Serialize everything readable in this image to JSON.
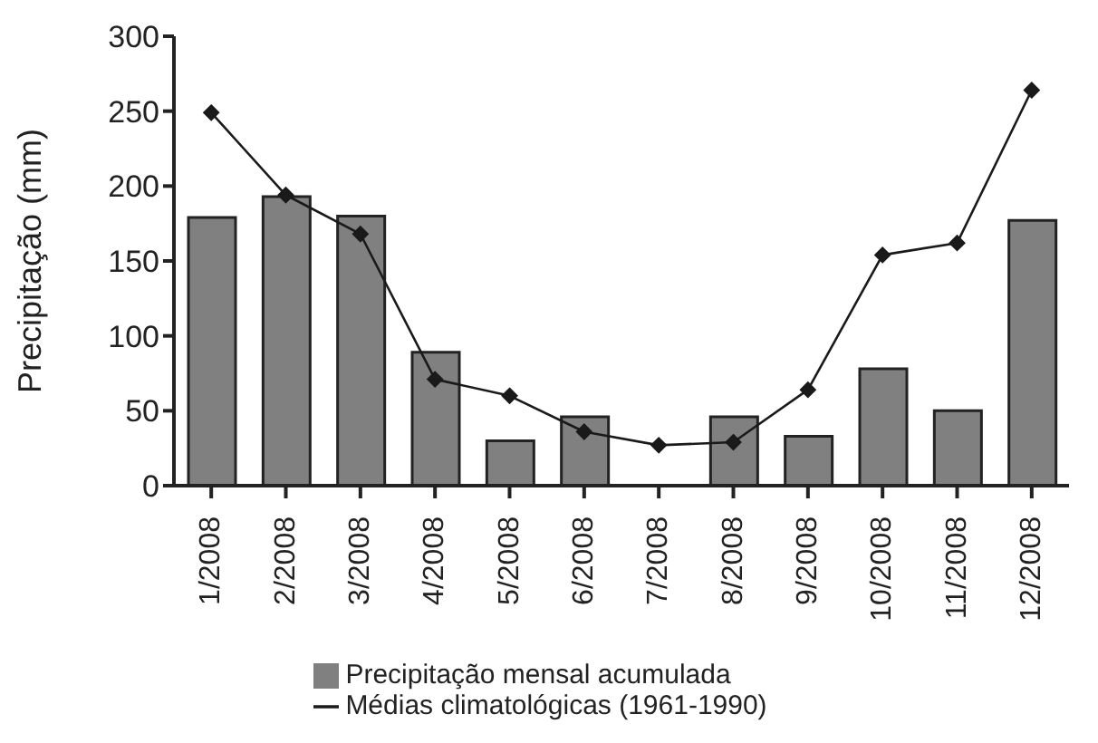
{
  "chart_data": {
    "type": "bar",
    "ylabel": "Precipitação (mm)",
    "categories": [
      "1/2008",
      "2/2008",
      "3/2008",
      "4/2008",
      "5/2008",
      "6/2008",
      "7/2008",
      "8/2008",
      "9/2008",
      "10/2008",
      "11/2008",
      "12/2008"
    ],
    "series": [
      {
        "name": "Precipitação mensal acumulada",
        "color": "#808080",
        "values": [
          179,
          193,
          180,
          89,
          30,
          46,
          0,
          46,
          33,
          78,
          50,
          177
        ]
      },
      {
        "name": "Médias climatológicas (1961-1990)",
        "type": "line",
        "color": "#1a1a1a",
        "marker": "diamond",
        "values": [
          249,
          194,
          168,
          71,
          60,
          36,
          27,
          29,
          64,
          154,
          162,
          264
        ]
      }
    ],
    "ylim": [
      0,
      300
    ],
    "yticks": [
      0,
      50,
      100,
      150,
      200,
      250,
      300
    ],
    "grid": false,
    "legend": "bottom"
  }
}
